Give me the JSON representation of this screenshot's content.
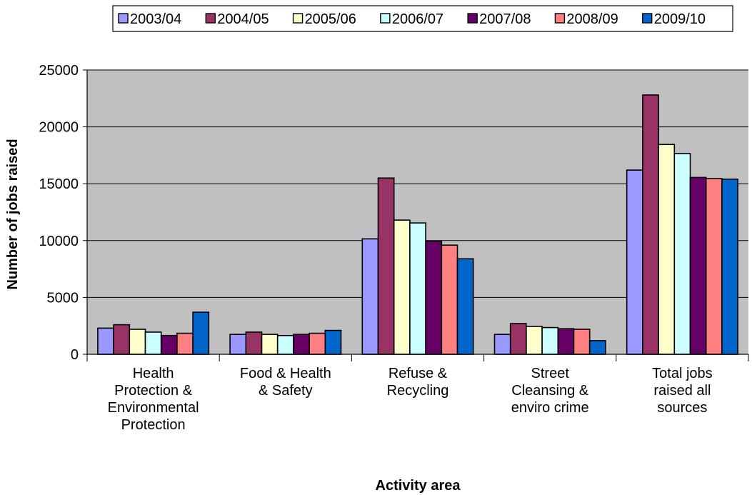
{
  "chart_data": {
    "type": "bar",
    "title": "",
    "xlabel": "Activity area",
    "ylabel": "Number of jobs raised",
    "ylim": [
      0,
      25000
    ],
    "yticks": [
      "0",
      "5000",
      "10000",
      "15000",
      "20000",
      "25000"
    ],
    "grid": "horizontal major gridlines",
    "plot_background": "#c0c0c0",
    "legend_position": "top",
    "categories": [
      [
        "Health",
        "Protection &",
        "Environmental",
        "Protection"
      ],
      [
        "Food & Health",
        "& Safety"
      ],
      [
        "Refuse &",
        "Recycling"
      ],
      [
        "Street",
        "Cleansing &",
        "enviro crime"
      ],
      [
        "Total jobs",
        "raised all",
        "sources"
      ]
    ],
    "series": [
      {
        "name": "2003/04",
        "color": "#9999ff",
        "values": [
          2300,
          1750,
          10150,
          1750,
          16200
        ]
      },
      {
        "name": "2004/05",
        "color": "#993366",
        "values": [
          2600,
          1950,
          15500,
          2700,
          22800
        ]
      },
      {
        "name": "2005/06",
        "color": "#ffffcc",
        "values": [
          2200,
          1750,
          11800,
          2450,
          18450
        ]
      },
      {
        "name": "2006/07",
        "color": "#ccffff",
        "values": [
          1950,
          1650,
          11550,
          2350,
          17650
        ]
      },
      {
        "name": "2007/08",
        "color": "#660066",
        "values": [
          1650,
          1750,
          9950,
          2250,
          15550
        ]
      },
      {
        "name": "2008/09",
        "color": "#ff8080",
        "values": [
          1850,
          1850,
          9600,
          2200,
          15450
        ]
      },
      {
        "name": "2009/10",
        "color": "#0066cc",
        "values": [
          3700,
          2100,
          8400,
          1200,
          15400
        ]
      }
    ]
  }
}
